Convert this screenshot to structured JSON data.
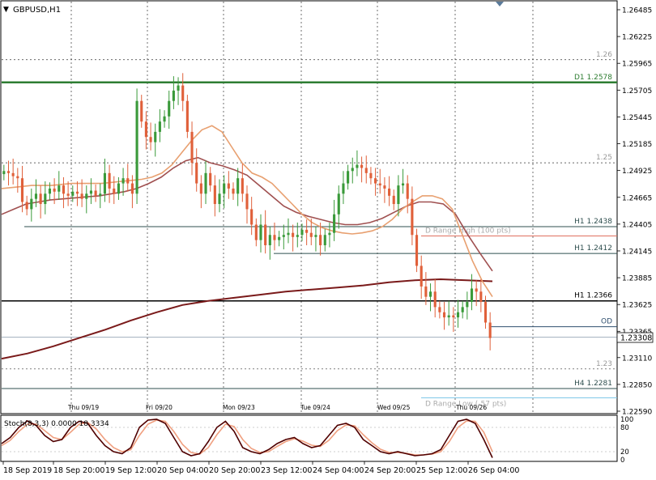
{
  "chart_data": {
    "type": "candlestick",
    "title": "GBPUSD,H1",
    "price_axis": {
      "min": 1.2259,
      "max": 1.26485,
      "ticks": [
        "1.26485",
        "1.26225",
        "1.25965",
        "1.25705",
        "1.25445",
        "1.25185",
        "1.24925",
        "1.24665",
        "1.24405",
        "1.24145",
        "1.23885",
        "1.23625",
        "1.23365",
        "1.23110",
        "1.22850",
        "1.22590"
      ]
    },
    "current_price": "1.23308",
    "date_labels": [
      "Thu 09/19",
      "Fri 09/20",
      "Mon 09/23",
      "Tue 09/24",
      "Wed 09/25",
      "Thu 09/26"
    ],
    "time_axis_labels": [
      "18 Sep 2019",
      "18 Sep 20:00",
      "19 Sep 12:00",
      "20 Sep 04:00",
      "20 Sep 20:00",
      "23 Sep 12:00",
      "24 Sep 04:00",
      "24 Sep 20:00",
      "25 Sep 12:00",
      "26 Sep 04:00"
    ],
    "levels": [
      {
        "label": "1.26",
        "price": 1.26,
        "style": "dotted-grid"
      },
      {
        "label": "D1 1.2578",
        "price": 1.2578,
        "color": "#2e7d32"
      },
      {
        "label": "1.25",
        "price": 1.25,
        "style": "dotted-grid"
      },
      {
        "label": "H1 1.2438",
        "price": 1.2438,
        "color": "#2f4f4f"
      },
      {
        "label": "D Range High (100 pts)",
        "price": 1.2429,
        "color": "#e07060"
      },
      {
        "label": "H1 1.2412",
        "price": 1.2412,
        "color": "#2f4f4f"
      },
      {
        "label": "H1 1.2366",
        "price": 1.2366,
        "color": "#000000"
      },
      {
        "label": "OD",
        "price": 1.2341,
        "color": "#2f4f6f"
      },
      {
        "label": "1.23",
        "price": 1.23,
        "style": "dotted-grid"
      },
      {
        "label": "H4 1.2281",
        "price": 1.2281,
        "color": "#2f4f4f"
      },
      {
        "label": "D Range Low (-57 pts)",
        "price": 1.2272,
        "color": "#80c8e8"
      }
    ],
    "candles_close": [
      1.2492,
      1.249,
      1.2487,
      1.2485,
      1.2462,
      1.2455,
      1.2465,
      1.247,
      1.246,
      1.247,
      1.2475,
      1.2472,
      1.2478,
      1.247,
      1.2468,
      1.2472,
      1.247,
      1.2465,
      1.247,
      1.2473,
      1.2468,
      1.247,
      1.249,
      1.2475,
      1.247,
      1.248,
      1.2485,
      1.248,
      1.247,
      1.256,
      1.254,
      1.2525,
      1.252,
      1.253,
      1.254,
      1.2545,
      1.256,
      1.257,
      1.2575,
      1.256,
      1.253,
      1.25,
      1.248,
      1.247,
      1.249,
      1.2478,
      1.246,
      1.247,
      1.248,
      1.2475,
      1.247,
      1.2485,
      1.247,
      1.2455,
      1.244,
      1.2425,
      1.244,
      1.242,
      1.243,
      1.2425,
      1.2428,
      1.243,
      1.2432,
      1.2428,
      1.243,
      1.2435,
      1.2432,
      1.2428,
      1.243,
      1.242,
      1.243,
      1.2432,
      1.245,
      1.247,
      1.248,
      1.2492,
      1.2495,
      1.2498,
      1.2495,
      1.249,
      1.2485,
      1.248,
      1.2478,
      1.2475,
      1.2468,
      1.246,
      1.2478,
      1.248,
      1.2465,
      1.243,
      1.24,
      1.238,
      1.237,
      1.2375,
      1.236,
      1.2355,
      1.235,
      1.2352,
      1.235,
      1.2355,
      1.236,
      1.2365,
      1.2378,
      1.2375,
      1.2365,
      1.2345,
      1.233
    ],
    "ema_fast_close": [
      1.2475,
      1.2476,
      1.2477,
      1.2478,
      1.2478,
      1.2478,
      1.2479,
      1.248,
      1.248,
      1.248,
      1.248,
      1.2481,
      1.2482,
      1.2483,
      1.2484,
      1.2486,
      1.249,
      1.2498,
      1.251,
      1.2522,
      1.2532,
      1.2536,
      1.253,
      1.2515,
      1.25,
      1.249,
      1.2486,
      1.248,
      1.247,
      1.246,
      1.245,
      1.2442,
      1.2437,
      1.2434,
      1.2432,
      1.2431,
      1.2432,
      1.2434,
      1.2438,
      1.2445,
      1.2455,
      1.2462,
      1.2468,
      1.2468,
      1.2465,
      1.2455,
      1.243,
      1.2405,
      1.2385,
      1.237
    ],
    "sma_mid_close": [
      1.245,
      1.2455,
      1.246,
      1.2462,
      1.2464,
      1.2465,
      1.2466,
      1.2467,
      1.2468,
      1.247,
      1.2472,
      1.2475,
      1.248,
      1.2486,
      1.2495,
      1.2502,
      1.2505,
      1.25,
      1.2497,
      1.2493,
      1.2488,
      1.2478,
      1.2468,
      1.2458,
      1.2452,
      1.2448,
      1.2445,
      1.2442,
      1.244,
      1.244,
      1.2442,
      1.2446,
      1.2452,
      1.2458,
      1.2462,
      1.2462,
      1.246,
      1.245,
      1.243,
      1.2412,
      1.2395
    ],
    "sma_slow_close": [
      1.231,
      1.2315,
      1.2322,
      1.233,
      1.2338,
      1.2347,
      1.2355,
      1.2362,
      1.2366,
      1.2369,
      1.2372,
      1.2375,
      1.2377,
      1.2379,
      1.2381,
      1.2384,
      1.2386,
      1.2387,
      1.2386,
      1.2385
    ],
    "stochastic": {
      "label": "Stoch(8,3,3) 0.0000 18.3334",
      "ylim": [
        0,
        100
      ],
      "ticks": [
        "100",
        "80",
        "20",
        "0"
      ],
      "main": [
        40,
        55,
        80,
        96,
        85,
        60,
        45,
        50,
        80,
        95,
        90,
        60,
        35,
        20,
        15,
        30,
        80,
        98,
        100,
        90,
        55,
        20,
        10,
        15,
        45,
        80,
        95,
        70,
        30,
        20,
        15,
        25,
        40,
        50,
        55,
        40,
        30,
        35,
        60,
        85,
        90,
        80,
        50,
        35,
        20,
        15,
        20,
        15,
        10,
        12,
        15,
        25,
        60,
        95,
        100,
        90,
        50,
        5
      ],
      "signal": [
        35,
        48,
        70,
        88,
        88,
        72,
        55,
        50,
        68,
        88,
        92,
        76,
        50,
        30,
        20,
        25,
        60,
        88,
        98,
        95,
        70,
        38,
        18,
        14,
        30,
        62,
        88,
        82,
        50,
        28,
        18,
        20,
        33,
        45,
        52,
        46,
        36,
        33,
        48,
        72,
        86,
        84,
        62,
        42,
        26,
        18,
        18,
        16,
        12,
        12,
        14,
        20,
        45,
        80,
        96,
        95,
        68,
        20
      ]
    }
  }
}
